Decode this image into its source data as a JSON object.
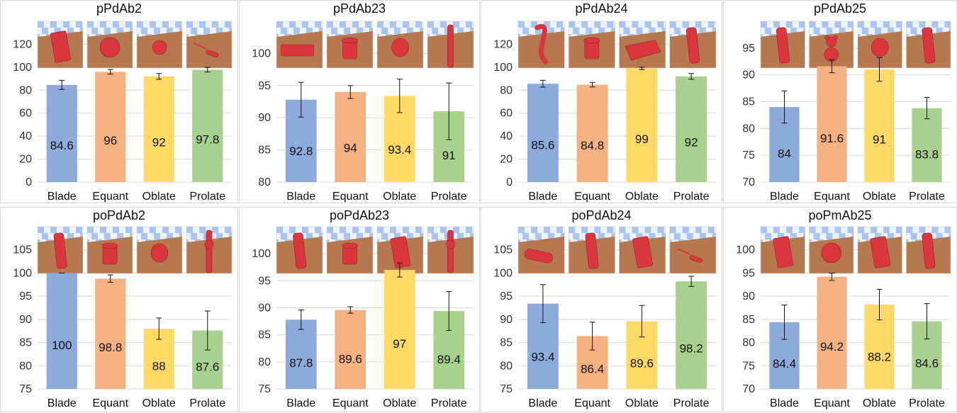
{
  "colors": {
    "Blade": "#8eaadb",
    "Equant": "#f4b183",
    "Oblate": "#ffd966",
    "Prolate": "#a9d18e",
    "grid": "#d9d9d9",
    "error_bar": "#111111",
    "object": "#d9363e",
    "floor": "#b5784f",
    "sky_checker_a": "#a9c5ef",
    "sky_checker_b": "#eef3fb"
  },
  "chart_data": [
    {
      "type": "bar",
      "title": "pPdAb2",
      "categories": [
        "Blade",
        "Equant",
        "Oblate",
        "Prolate"
      ],
      "values": [
        84.6,
        96,
        92,
        97.8
      ],
      "errors": [
        4,
        2,
        2.5,
        2
      ],
      "ylim": [
        0,
        140
      ],
      "yticks": [
        0,
        20,
        40,
        60,
        80,
        100,
        120
      ],
      "grid": true,
      "thumbnail_icons": [
        "flat-slab-icon",
        "ball-icon",
        "sphere-icon",
        "screwdriver-icon"
      ]
    },
    {
      "type": "bar",
      "title": "pPdAb23",
      "categories": [
        "Blade",
        "Equant",
        "Oblate",
        "Prolate"
      ],
      "values": [
        92.8,
        94,
        93.4,
        91
      ],
      "errors": [
        2.7,
        1,
        2.6,
        4.4
      ],
      "ylim": [
        80,
        105
      ],
      "yticks": [
        80,
        85,
        90,
        95,
        100
      ],
      "grid": true,
      "thumbnail_icons": [
        "brick-icon",
        "block-icon",
        "disc-icon",
        "rod-icon"
      ]
    },
    {
      "type": "bar",
      "title": "pPdAb24",
      "categories": [
        "Blade",
        "Equant",
        "Oblate",
        "Prolate"
      ],
      "values": [
        85.6,
        84.8,
        99,
        92
      ],
      "errors": [
        3,
        2,
        1,
        2.5
      ],
      "ylim": [
        0,
        140
      ],
      "yticks": [
        0,
        20,
        40,
        60,
        80,
        100,
        120
      ],
      "grid": true,
      "thumbnail_icons": [
        "phone-handset-icon",
        "spool-icon",
        "tray-icon",
        "cylinder-icon"
      ]
    },
    {
      "type": "bar",
      "title": "pPdAb25",
      "categories": [
        "Blade",
        "Equant",
        "Oblate",
        "Prolate"
      ],
      "values": [
        84,
        91.6,
        91,
        83.8
      ],
      "errors": [
        3,
        1.2,
        2.2,
        2
      ],
      "ylim": [
        70,
        100
      ],
      "yticks": [
        70,
        75,
        80,
        85,
        90,
        95
      ],
      "grid": true,
      "thumbnail_icons": [
        "remote-icon",
        "teddy-bear-icon",
        "disc-icon",
        "cylinder-icon"
      ]
    },
    {
      "type": "bar",
      "title": "poPdAb2",
      "categories": [
        "Blade",
        "Equant",
        "Oblate",
        "Prolate"
      ],
      "values": [
        100,
        98.8,
        88,
        87.6
      ],
      "errors": [
        0,
        0.8,
        2.3,
        4.2
      ],
      "ylim": [
        75,
        110
      ],
      "yticks": [
        75,
        80,
        85,
        90,
        95,
        100,
        105
      ],
      "grid": true,
      "thumbnail_icons": [
        "remote-icon",
        "cup-icon",
        "disc-icon",
        "tower-icon"
      ]
    },
    {
      "type": "bar",
      "title": "poPdAb23",
      "categories": [
        "Blade",
        "Equant",
        "Oblate",
        "Prolate"
      ],
      "values": [
        87.8,
        89.6,
        97,
        89.4
      ],
      "errors": [
        1.8,
        0.6,
        1.3,
        3.6
      ],
      "ylim": [
        75,
        105
      ],
      "yticks": [
        75,
        80,
        85,
        90,
        95,
        100
      ],
      "grid": true,
      "thumbnail_icons": [
        "cylinder-icon",
        "spool-icon",
        "book-icon",
        "tower-icon"
      ]
    },
    {
      "type": "bar",
      "title": "poPdAb24",
      "categories": [
        "Blade",
        "Equant",
        "Oblate",
        "Prolate"
      ],
      "values": [
        93.4,
        86.4,
        89.6,
        98.2
      ],
      "errors": [
        4.1,
        3,
        3.4,
        1.1
      ],
      "ylim": [
        75,
        110
      ],
      "yticks": [
        75,
        80,
        85,
        90,
        95,
        100,
        105
      ],
      "grid": true,
      "thumbnail_icons": [
        "capsule-icon",
        "cylinder-icon",
        "slab-icon",
        "screwdriver-icon"
      ]
    },
    {
      "type": "bar",
      "title": "poPmAb25",
      "categories": [
        "Blade",
        "Equant",
        "Oblate",
        "Prolate"
      ],
      "values": [
        84.4,
        94.2,
        88.2,
        84.6
      ],
      "errors": [
        3.7,
        0.8,
        3.3,
        3.8
      ],
      "ylim": [
        70,
        105
      ],
      "yticks": [
        70,
        75,
        80,
        85,
        90,
        95,
        100
      ],
      "grid": true,
      "thumbnail_icons": [
        "slab-icon",
        "ball-icon",
        "slab-icon",
        "remote-icon"
      ]
    }
  ]
}
